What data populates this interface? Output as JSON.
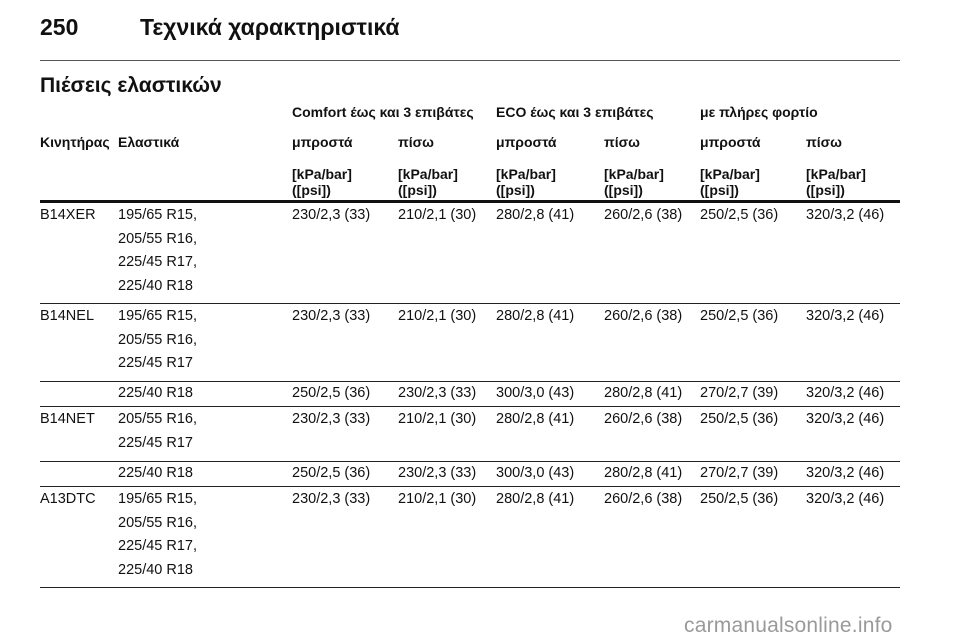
{
  "page": {
    "number": "250",
    "chapter": "Τεχνικά χαρακτηριστικά"
  },
  "section_title": "Πιέσεις ελαστικών",
  "table": {
    "groups": [
      "Comfort έως και 3 επιβάτες",
      "ECO έως και 3 επιβάτες",
      "με πλήρες φορτίο"
    ],
    "columns": [
      "Κινητήρας",
      "Ελαστικά",
      "μπροστά",
      "πίσω",
      "μπροστά",
      "πίσω",
      "μπροστά",
      "πίσω"
    ],
    "unit_line1": "[kPa/bar]",
    "unit_line2": "([psi])",
    "rows": [
      {
        "engine": "B14XER",
        "tyres": [
          "195/65 R15,",
          "205/55 R16,",
          "225/45 R17,",
          "225/40 R18"
        ],
        "values": [
          "230/2,3 (33)",
          "210/2,1 (30)",
          "280/2,8 (41)",
          "260/2,6 (38)",
          "250/2,5 (36)",
          "320/3,2 (46)"
        ]
      },
      {
        "engine": "B14NEL",
        "tyres": [
          "195/65 R15,",
          "205/55 R16,",
          "225/45 R17"
        ],
        "values": [
          "230/2,3 (33)",
          "210/2,1 (30)",
          "280/2,8 (41)",
          "260/2,6 (38)",
          "250/2,5 (36)",
          "320/3,2 (46)"
        ]
      },
      {
        "engine": "",
        "tyres": [
          "225/40 R18"
        ],
        "values": [
          "250/2,5 (36)",
          "230/2,3 (33)",
          "300/3,0 (43)",
          "280/2,8 (41)",
          "270/2,7 (39)",
          "320/3,2 (46)"
        ]
      },
      {
        "engine": "B14NET",
        "tyres": [
          "205/55 R16,",
          "225/45 R17"
        ],
        "values": [
          "230/2,3 (33)",
          "210/2,1 (30)",
          "280/2,8 (41)",
          "260/2,6 (38)",
          "250/2,5 (36)",
          "320/3,2 (46)"
        ]
      },
      {
        "engine": "",
        "tyres": [
          "225/40 R18"
        ],
        "values": [
          "250/2,5 (36)",
          "230/2,3 (33)",
          "300/3,0 (43)",
          "280/2,8 (41)",
          "270/2,7 (39)",
          "320/3,2 (46)"
        ]
      },
      {
        "engine": "A13DTC",
        "tyres": [
          "195/65 R15,",
          "205/55 R16,",
          "225/45 R17,",
          "225/40 R18"
        ],
        "values": [
          "230/2,3 (33)",
          "210/2,1 (30)",
          "280/2,8 (41)",
          "260/2,6 (38)",
          "250/2,5 (36)",
          "320/3,2 (46)"
        ]
      }
    ]
  },
  "watermark": "carmanualsonline.info"
}
